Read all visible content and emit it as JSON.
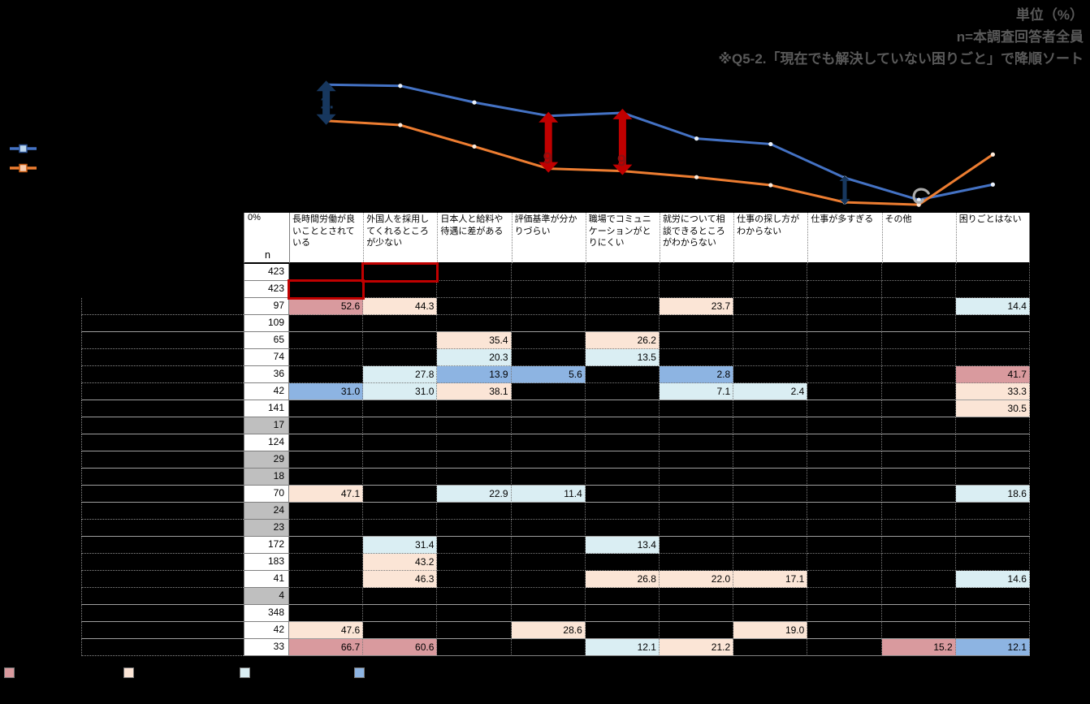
{
  "notes": {
    "unit": "単位（%）",
    "n": "n=本調査回答者全員",
    "sort": "※Q5-2.「現在でも解決していない困りごと」で降順ソート"
  },
  "chart_data": {
    "type": "line",
    "title": "",
    "categories": [
      "長時間労働が良いこととされている",
      "外国人を採用してくれるところが少ない",
      "日本人と給料や待遇に差がある",
      "評価基準が分かりづらい",
      "職場でコミュニケーションがとりにくい",
      "就労について相談できるところがわからない",
      "仕事の探し方がわからない",
      "仕事が多すぎる",
      "その他",
      "困りごとはない"
    ],
    "series": [
      {
        "name": "series-blue",
        "color": "#4472C4",
        "marker_fill": "#E9F0FA",
        "values": [
          20.9,
          20.7,
          18.0,
          15.8,
          16.3,
          12.1,
          11.2,
          5.7,
          2.1,
          4.6
        ]
      },
      {
        "name": "series-orange",
        "color": "#ED7D31",
        "marker_fill": "#FDEADA",
        "values": [
          15.0,
          14.3,
          10.8,
          7.2,
          6.8,
          5.8,
          4.5,
          1.7,
          1.3,
          9.5
        ]
      }
    ],
    "y_axis": {
      "zero_label": "0%",
      "unit": "%"
    },
    "legend_position": "left",
    "grid": false,
    "annotations": [
      {
        "kind": "double-arrow",
        "at": 0,
        "label": "1.",
        "color": "#17375E",
        "label_color": "#17375E",
        "size": "large"
      },
      {
        "kind": "double-arrow",
        "at": 3,
        "label": "9",
        "color": "#C00000",
        "label_color": "#8E1010",
        "size": "large"
      },
      {
        "kind": "double-arrow",
        "at": 4,
        "label": "9",
        "color": "#C00000",
        "label_color": "#8E1010",
        "size": "large"
      },
      {
        "kind": "double-arrow",
        "at": 7,
        "label": "",
        "color": "#17375E",
        "label_color": "#17375E",
        "size": "small"
      },
      {
        "kind": "curl",
        "at": 8,
        "color": "#ABABAB"
      }
    ]
  },
  "table": {
    "corner": {
      "zero_label": "0%",
      "n_label": "n"
    },
    "columns": [
      "長時間労働が良いこととされている",
      "外国人を採用してくれるところが少ない",
      "日本人と給料や待遇に差がある",
      "評価基準が分かりづらい",
      "職場でコミュニケーションがとりにくい",
      "就労について相談できるところがわからない",
      "仕事の探し方がわからない",
      "仕事が多すぎる",
      "その他",
      "困りごとはない"
    ],
    "heat_colors": {
      "up10": "#D99A9E",
      "up5": "#FBE5D6",
      "down5": "#DAEEF3",
      "down10": "#8DB4E2"
    },
    "red_box_color": "#C00000",
    "rows": [
      {
        "n": "423",
        "g": false,
        "rb": 1,
        "c": {}
      },
      {
        "n": "423",
        "g": false,
        "rb": 0,
        "c": {}
      },
      {
        "n": "97",
        "g": false,
        "c": {
          "0": [
            "52.6",
            "up10"
          ],
          "1": [
            "44.3",
            "up5"
          ],
          "5": [
            "23.7",
            "up5"
          ],
          "9": [
            "14.4",
            "down5"
          ]
        }
      },
      {
        "n": "109",
        "g": false,
        "c": {}
      },
      {
        "n": "65",
        "g": false,
        "c": {
          "2": [
            "35.4",
            "up5"
          ],
          "4": [
            "26.2",
            "up5"
          ]
        }
      },
      {
        "n": "74",
        "g": false,
        "c": {
          "2": [
            "20.3",
            "down5"
          ],
          "4": [
            "13.5",
            "down5"
          ]
        }
      },
      {
        "n": "36",
        "g": false,
        "c": {
          "1": [
            "27.8",
            "down5"
          ],
          "2": [
            "13.9",
            "down10"
          ],
          "3": [
            "5.6",
            "down10"
          ],
          "5": [
            "2.8",
            "down10"
          ],
          "9": [
            "41.7",
            "up10"
          ]
        }
      },
      {
        "n": "42",
        "g": false,
        "c": {
          "0": [
            "31.0",
            "down10"
          ],
          "1": [
            "31.0",
            "down5"
          ],
          "2": [
            "38.1",
            "up5"
          ],
          "5": [
            "7.1",
            "down5"
          ],
          "6": [
            "2.4",
            "down5"
          ],
          "9": [
            "33.3",
            "up5"
          ]
        }
      },
      {
        "n": "141",
        "g": false,
        "c": {
          "9": [
            "30.5",
            "up5"
          ]
        }
      },
      {
        "n": "17",
        "g": true,
        "c": {}
      },
      {
        "n": "124",
        "g": false,
        "c": {}
      },
      {
        "n": "29",
        "g": true,
        "c": {}
      },
      {
        "n": "18",
        "g": true,
        "c": {}
      },
      {
        "n": "70",
        "g": false,
        "c": {
          "0": [
            "47.1",
            "up5"
          ],
          "2": [
            "22.9",
            "down5"
          ],
          "3": [
            "11.4",
            "down5"
          ],
          "9": [
            "18.6",
            "down5"
          ]
        }
      },
      {
        "n": "24",
        "g": true,
        "c": {}
      },
      {
        "n": "23",
        "g": true,
        "c": {}
      },
      {
        "n": "172",
        "g": false,
        "c": {
          "1": [
            "31.4",
            "down5"
          ],
          "4": [
            "13.4",
            "down5"
          ]
        }
      },
      {
        "n": "183",
        "g": false,
        "c": {
          "1": [
            "43.2",
            "up5"
          ]
        }
      },
      {
        "n": "41",
        "g": false,
        "c": {
          "1": [
            "46.3",
            "up5"
          ],
          "4": [
            "26.8",
            "up5"
          ],
          "5": [
            "22.0",
            "up5"
          ],
          "6": [
            "17.1",
            "up5"
          ],
          "9": [
            "14.6",
            "down5"
          ]
        }
      },
      {
        "n": "4",
        "g": true,
        "c": {}
      },
      {
        "n": "348",
        "g": false,
        "c": {}
      },
      {
        "n": "42",
        "g": false,
        "c": {
          "0": [
            "47.6",
            "up5"
          ],
          "3": [
            "28.6",
            "up5"
          ],
          "6": [
            "19.0",
            "up5"
          ]
        }
      },
      {
        "n": "33",
        "g": false,
        "c": {
          "0": [
            "66.7",
            "up10"
          ],
          "1": [
            "60.6",
            "up10"
          ],
          "4": [
            "12.1",
            "down5"
          ],
          "5": [
            "21.2",
            "up5"
          ],
          "8": [
            "15.2",
            "up10"
          ],
          "9": [
            "12.1",
            "down10"
          ]
        }
      }
    ]
  },
  "heat_legend": [
    {
      "name": "up10-swatch",
      "color": "#D99A9E"
    },
    {
      "name": "up5-swatch",
      "color": "#FBE5D6"
    },
    {
      "name": "down5-swatch",
      "color": "#DAEEF3"
    },
    {
      "name": "down10-swatch",
      "color": "#8DB4E2"
    }
  ]
}
